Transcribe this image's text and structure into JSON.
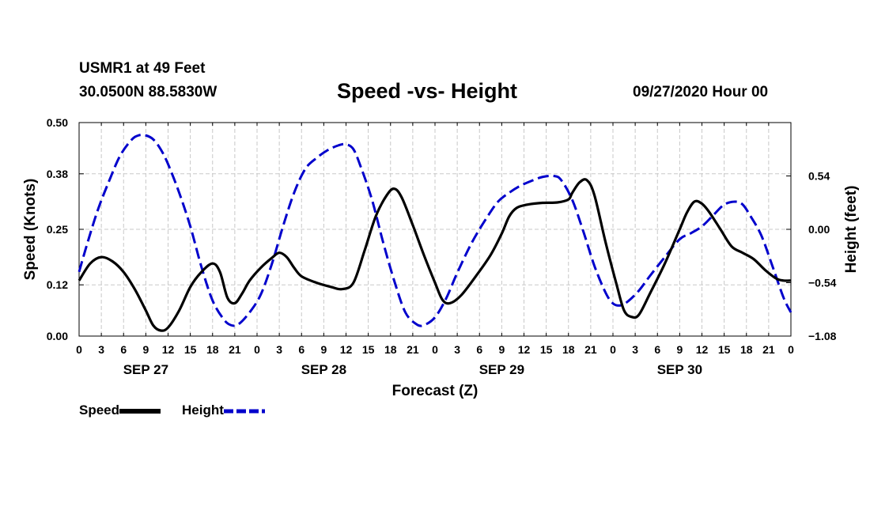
{
  "header": {
    "station": "USMR1 at 49 Feet",
    "coords": "30.0500N 88.5830W",
    "title": "Speed -vs- Height",
    "timestamp": "09/27/2020 Hour 00"
  },
  "chart_data": {
    "type": "line",
    "title": "Speed -vs- Height",
    "xlabel": "Forecast (Z)",
    "ylabel_left": "Speed (Knots)",
    "ylabel_right": "Height (feet)",
    "x_unit": "hours from 09/27 00Z",
    "xlim": [
      0,
      96
    ],
    "x_tick_step": 3,
    "x_tick_labels": [
      "0",
      "3",
      "6",
      "9",
      "12",
      "15",
      "18",
      "21",
      "0",
      "3",
      "6",
      "9",
      "12",
      "15",
      "18",
      "21",
      "0",
      "3",
      "6",
      "9",
      "12",
      "15",
      "18",
      "21",
      "0",
      "3",
      "6",
      "9",
      "12",
      "15",
      "18",
      "21",
      "0"
    ],
    "date_labels": [
      {
        "label": "SEP 27",
        "hour": 9
      },
      {
        "label": "SEP 28",
        "hour": 33
      },
      {
        "label": "SEP 29",
        "hour": 57
      },
      {
        "label": "SEP 30",
        "hour": 81
      }
    ],
    "ylim_left": [
      0,
      0.5
    ],
    "y_ticks_left": [
      0.0,
      0.12,
      0.25,
      0.38,
      0.5
    ],
    "y_tick_labels_left": [
      "0.00",
      "0.12",
      "0.25",
      "0.38",
      "0.50"
    ],
    "ylim_right": [
      -1.08,
      1.08
    ],
    "y_ticks_right": [
      -1.08,
      -0.54,
      0.0,
      0.54
    ],
    "y_tick_labels_right": [
      "−1.08",
      "−0.54",
      "0.00",
      "0.54"
    ],
    "grid": true,
    "series": [
      {
        "name": "Speed",
        "axis": "left",
        "color": "#000000",
        "style": "solid",
        "points": [
          [
            0,
            0.13
          ],
          [
            1.5,
            0.17
          ],
          [
            3,
            0.185
          ],
          [
            4.5,
            0.175
          ],
          [
            6,
            0.15
          ],
          [
            7.5,
            0.11
          ],
          [
            9,
            0.06
          ],
          [
            10,
            0.025
          ],
          [
            11,
            0.013
          ],
          [
            12,
            0.02
          ],
          [
            13.5,
            0.06
          ],
          [
            15,
            0.115
          ],
          [
            16.5,
            0.15
          ],
          [
            18,
            0.17
          ],
          [
            19,
            0.15
          ],
          [
            20,
            0.09
          ],
          [
            21,
            0.077
          ],
          [
            22,
            0.1
          ],
          [
            23,
            0.13
          ],
          [
            24.5,
            0.16
          ],
          [
            26,
            0.183
          ],
          [
            27,
            0.195
          ],
          [
            28,
            0.185
          ],
          [
            29,
            0.16
          ],
          [
            30,
            0.14
          ],
          [
            32,
            0.125
          ],
          [
            34,
            0.115
          ],
          [
            35.5,
            0.11
          ],
          [
            37,
            0.125
          ],
          [
            38.5,
            0.2
          ],
          [
            40,
            0.28
          ],
          [
            41.5,
            0.33
          ],
          [
            42.5,
            0.345
          ],
          [
            43.5,
            0.325
          ],
          [
            45,
            0.26
          ],
          [
            46.5,
            0.19
          ],
          [
            48,
            0.125
          ],
          [
            49,
            0.085
          ],
          [
            50,
            0.077
          ],
          [
            51.5,
            0.095
          ],
          [
            53.5,
            0.14
          ],
          [
            55.5,
            0.19
          ],
          [
            57,
            0.24
          ],
          [
            58,
            0.28
          ],
          [
            59,
            0.3
          ],
          [
            60.5,
            0.308
          ],
          [
            62.5,
            0.312
          ],
          [
            64.5,
            0.313
          ],
          [
            66,
            0.32
          ],
          [
            66.5,
            0.335
          ],
          [
            67.5,
            0.36
          ],
          [
            68.5,
            0.365
          ],
          [
            69.5,
            0.33
          ],
          [
            71,
            0.22
          ],
          [
            72.5,
            0.12
          ],
          [
            73.5,
            0.06
          ],
          [
            74.5,
            0.045
          ],
          [
            75.5,
            0.05
          ],
          [
            77,
            0.1
          ],
          [
            79,
            0.17
          ],
          [
            81,
            0.25
          ],
          [
            82,
            0.29
          ],
          [
            83,
            0.315
          ],
          [
            84,
            0.31
          ],
          [
            85,
            0.29
          ],
          [
            86.5,
            0.25
          ],
          [
            88,
            0.21
          ],
          [
            89.5,
            0.195
          ],
          [
            91,
            0.18
          ],
          [
            92.5,
            0.155
          ],
          [
            94,
            0.135
          ],
          [
            95,
            0.13
          ],
          [
            96,
            0.13
          ]
        ]
      },
      {
        "name": "Height",
        "axis": "right",
        "color": "#0000cc",
        "style": "dashed",
        "points": [
          [
            0,
            -0.43
          ],
          [
            1,
            -0.17
          ],
          [
            2.5,
            0.19
          ],
          [
            4,
            0.48
          ],
          [
            5.5,
            0.74
          ],
          [
            7,
            0.9
          ],
          [
            8,
            0.95
          ],
          [
            9,
            0.95
          ],
          [
            10,
            0.91
          ],
          [
            11,
            0.81
          ],
          [
            12,
            0.66
          ],
          [
            13.5,
            0.37
          ],
          [
            15,
            0.03
          ],
          [
            16.5,
            -0.38
          ],
          [
            18,
            -0.72
          ],
          [
            19.5,
            -0.91
          ],
          [
            20.5,
            -0.97
          ],
          [
            21.5,
            -0.96
          ],
          [
            23,
            -0.84
          ],
          [
            24.5,
            -0.66
          ],
          [
            26,
            -0.35
          ],
          [
            27.5,
            0.03
          ],
          [
            29,
            0.37
          ],
          [
            30.5,
            0.61
          ],
          [
            32,
            0.72
          ],
          [
            33.5,
            0.8
          ],
          [
            35,
            0.85
          ],
          [
            36,
            0.86
          ],
          [
            37,
            0.81
          ],
          [
            38,
            0.63
          ],
          [
            39.5,
            0.3
          ],
          [
            41,
            -0.13
          ],
          [
            42.5,
            -0.52
          ],
          [
            44,
            -0.84
          ],
          [
            45.5,
            -0.96
          ],
          [
            46.5,
            -0.97
          ],
          [
            48,
            -0.89
          ],
          [
            49.5,
            -0.7
          ],
          [
            51,
            -0.44
          ],
          [
            53,
            -0.13
          ],
          [
            55,
            0.12
          ],
          [
            56.5,
            0.28
          ],
          [
            58,
            0.37
          ],
          [
            59.5,
            0.44
          ],
          [
            61,
            0.49
          ],
          [
            62.5,
            0.53
          ],
          [
            64,
            0.54
          ],
          [
            65,
            0.5
          ],
          [
            66.5,
            0.3
          ],
          [
            68,
            -0.02
          ],
          [
            69.5,
            -0.37
          ],
          [
            71,
            -0.64
          ],
          [
            72,
            -0.75
          ],
          [
            73,
            -0.77
          ],
          [
            74,
            -0.73
          ],
          [
            75.5,
            -0.62
          ],
          [
            77,
            -0.47
          ],
          [
            79,
            -0.28
          ],
          [
            81,
            -0.1
          ],
          [
            82.5,
            -0.04
          ],
          [
            84,
            0.03
          ],
          [
            85.5,
            0.14
          ],
          [
            87,
            0.25
          ],
          [
            88.5,
            0.28
          ],
          [
            89.5,
            0.25
          ],
          [
            90.5,
            0.14
          ],
          [
            92,
            -0.06
          ],
          [
            93.5,
            -0.37
          ],
          [
            95,
            -0.69
          ],
          [
            96,
            -0.84
          ]
        ]
      }
    ]
  },
  "legend": {
    "items": [
      {
        "label": "Speed",
        "color": "#000000",
        "style": "solid"
      },
      {
        "label": "Height",
        "color": "#0000cc",
        "style": "dashed"
      }
    ]
  }
}
